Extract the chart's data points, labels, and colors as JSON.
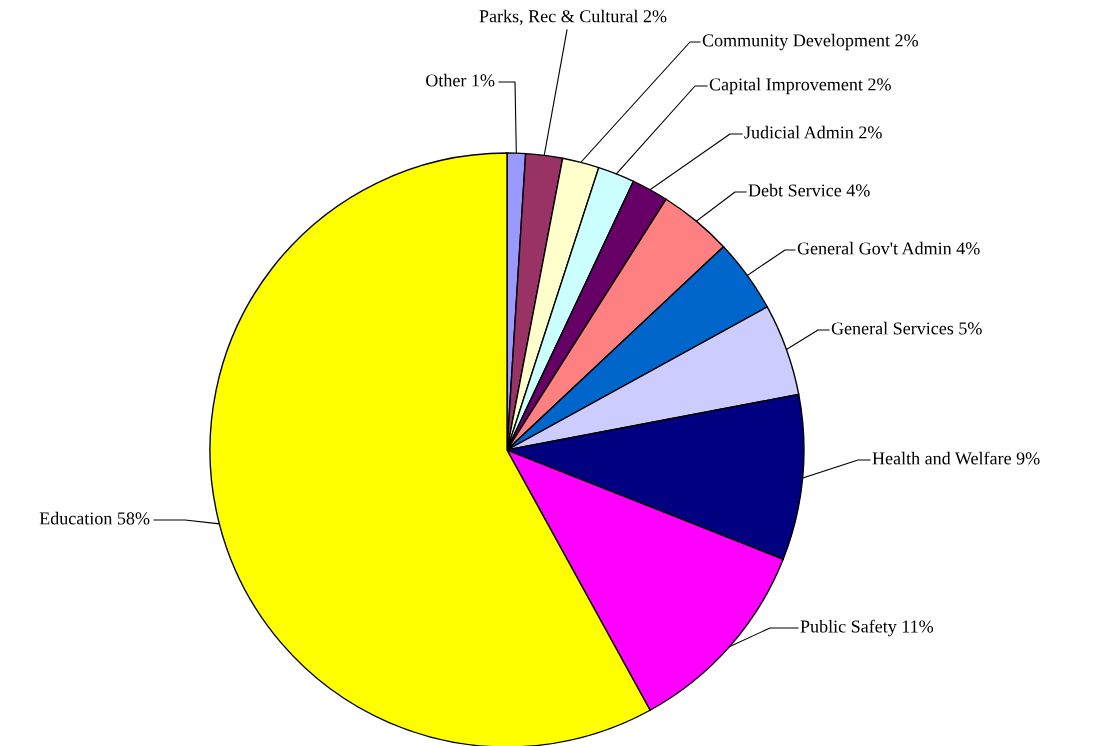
{
  "chart_data": {
    "type": "pie",
    "categories": [
      "Other",
      "Parks, Rec & Cultural",
      "Community Development",
      "Capital Improvement",
      "Judicial Admin",
      "Debt Service",
      "General Gov't Admin",
      "General Services",
      "Health and Welfare",
      "Public Safety",
      "Education"
    ],
    "values": [
      1,
      2,
      2,
      2,
      2,
      4,
      4,
      5,
      9,
      11,
      58
    ],
    "value_labels": [
      "1%",
      "2%",
      "2%",
      "2%",
      "2%",
      "4%",
      "4%",
      "5%",
      "9%",
      "11%",
      "58%"
    ],
    "colors": [
      "#9999ff",
      "#993366",
      "#ffffcc",
      "#ccffff",
      "#660066",
      "#ff8080",
      "#0066cc",
      "#ccccff",
      "#000080",
      "#ff00ff",
      "#ffff00"
    ],
    "legend": false
  }
}
